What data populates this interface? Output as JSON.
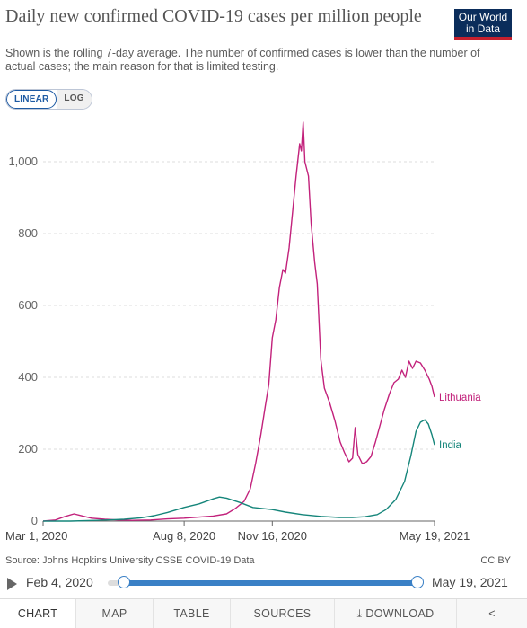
{
  "header": {
    "title": "Daily new confirmed COVID-19 cases per million people",
    "subtitle": "Shown is the rolling 7-day average. The number of confirmed cases is lower than the number of actual cases; the main reason for that is limited testing.",
    "logo_line1": "Our World",
    "logo_line2": "in Data"
  },
  "scale_toggle": {
    "linear": "LINEAR",
    "log": "LOG",
    "selected": "LINEAR"
  },
  "colors": {
    "lithuania": "#c2217b",
    "india": "#15857a",
    "accent": "#3a80c6"
  },
  "chart_data": {
    "type": "line",
    "title": "Daily new confirmed COVID-19 cases per million people",
    "ylim": [
      0,
      1150
    ],
    "yticks": [
      0,
      200,
      400,
      600,
      800,
      1000
    ],
    "ytick_labels": [
      "0",
      "200",
      "400",
      "600",
      "800",
      "1,000"
    ],
    "xlim": [
      "2020-03-01",
      "2021-05-19"
    ],
    "xticks": [
      "2020-03-01",
      "2020-08-08",
      "2020-11-16",
      "2021-05-19"
    ],
    "xtick_labels": [
      "Mar 1, 2020",
      "Aug 8, 2020",
      "Nov 16, 2020",
      "May 19, 2021"
    ],
    "grid": "horizontal dashed",
    "legend": "line-end labels",
    "series": [
      {
        "name": "Lithuania",
        "points": [
          [
            "2020-03-01",
            0
          ],
          [
            "2020-03-15",
            3
          ],
          [
            "2020-03-25",
            12
          ],
          [
            "2020-04-05",
            20
          ],
          [
            "2020-04-15",
            14
          ],
          [
            "2020-04-25",
            8
          ],
          [
            "2020-05-10",
            5
          ],
          [
            "2020-05-25",
            3
          ],
          [
            "2020-06-10",
            2
          ],
          [
            "2020-07-01",
            3
          ],
          [
            "2020-07-20",
            6
          ],
          [
            "2020-08-08",
            8
          ],
          [
            "2020-08-25",
            11
          ],
          [
            "2020-09-10",
            14
          ],
          [
            "2020-09-25",
            20
          ],
          [
            "2020-10-05",
            35
          ],
          [
            "2020-10-15",
            55
          ],
          [
            "2020-10-22",
            90
          ],
          [
            "2020-10-28",
            160
          ],
          [
            "2020-11-03",
            240
          ],
          [
            "2020-11-08",
            320
          ],
          [
            "2020-11-12",
            380
          ],
          [
            "2020-11-16",
            510
          ],
          [
            "2020-11-20",
            560
          ],
          [
            "2020-11-24",
            650
          ],
          [
            "2020-11-28",
            700
          ],
          [
            "2020-12-01",
            690
          ],
          [
            "2020-12-05",
            760
          ],
          [
            "2020-12-09",
            860
          ],
          [
            "2020-12-13",
            960
          ],
          [
            "2020-12-17",
            1050
          ],
          [
            "2020-12-19",
            1030
          ],
          [
            "2020-12-21",
            1110
          ],
          [
            "2020-12-23",
            1000
          ],
          [
            "2020-12-27",
            960
          ],
          [
            "2020-12-30",
            830
          ],
          [
            "2021-01-03",
            720
          ],
          [
            "2021-01-06",
            660
          ],
          [
            "2021-01-10",
            450
          ],
          [
            "2021-01-14",
            370
          ],
          [
            "2021-01-20",
            330
          ],
          [
            "2021-01-26",
            280
          ],
          [
            "2021-02-01",
            220
          ],
          [
            "2021-02-06",
            190
          ],
          [
            "2021-02-11",
            165
          ],
          [
            "2021-02-15",
            175
          ],
          [
            "2021-02-18",
            260
          ],
          [
            "2021-02-21",
            185
          ],
          [
            "2021-02-26",
            160
          ],
          [
            "2021-03-03",
            165
          ],
          [
            "2021-03-08",
            180
          ],
          [
            "2021-03-13",
            220
          ],
          [
            "2021-03-18",
            265
          ],
          [
            "2021-03-23",
            310
          ],
          [
            "2021-03-29",
            355
          ],
          [
            "2021-04-03",
            385
          ],
          [
            "2021-04-08",
            395
          ],
          [
            "2021-04-12",
            420
          ],
          [
            "2021-04-16",
            400
          ],
          [
            "2021-04-20",
            445
          ],
          [
            "2021-04-24",
            425
          ],
          [
            "2021-04-28",
            445
          ],
          [
            "2021-05-03",
            440
          ],
          [
            "2021-05-08",
            420
          ],
          [
            "2021-05-13",
            395
          ],
          [
            "2021-05-16",
            375
          ],
          [
            "2021-05-19",
            345
          ]
        ]
      },
      {
        "name": "India",
        "points": [
          [
            "2020-03-01",
            0
          ],
          [
            "2020-04-01",
            0
          ],
          [
            "2020-05-01",
            2
          ],
          [
            "2020-06-01",
            5
          ],
          [
            "2020-06-20",
            9
          ],
          [
            "2020-07-05",
            15
          ],
          [
            "2020-07-20",
            24
          ],
          [
            "2020-08-08",
            38
          ],
          [
            "2020-08-25",
            48
          ],
          [
            "2020-09-10",
            62
          ],
          [
            "2020-09-17",
            67
          ],
          [
            "2020-09-25",
            64
          ],
          [
            "2020-10-10",
            52
          ],
          [
            "2020-10-25",
            38
          ],
          [
            "2020-11-16",
            32
          ],
          [
            "2020-12-01",
            25
          ],
          [
            "2020-12-20",
            18
          ],
          [
            "2021-01-10",
            13
          ],
          [
            "2021-01-31",
            10
          ],
          [
            "2021-02-15",
            10
          ],
          [
            "2021-03-01",
            12
          ],
          [
            "2021-03-15",
            18
          ],
          [
            "2021-03-25",
            32
          ],
          [
            "2021-04-05",
            60
          ],
          [
            "2021-04-15",
            110
          ],
          [
            "2021-04-22",
            180
          ],
          [
            "2021-04-28",
            250
          ],
          [
            "2021-05-03",
            275
          ],
          [
            "2021-05-08",
            282
          ],
          [
            "2021-05-12",
            270
          ],
          [
            "2021-05-16",
            240
          ],
          [
            "2021-05-19",
            212
          ]
        ]
      }
    ]
  },
  "footer": {
    "source": "Source: Johns Hopkins University CSSE COVID-19 Data",
    "license": "CC BY",
    "timeline_start": "Feb 4, 2020",
    "timeline_end": "May 19, 2021"
  },
  "tabs": [
    {
      "label": "CHART",
      "active": true
    },
    {
      "label": "MAP"
    },
    {
      "label": "TABLE"
    },
    {
      "label": "SOURCES"
    },
    {
      "label": "DOWNLOAD"
    },
    {
      "label": ""
    }
  ]
}
